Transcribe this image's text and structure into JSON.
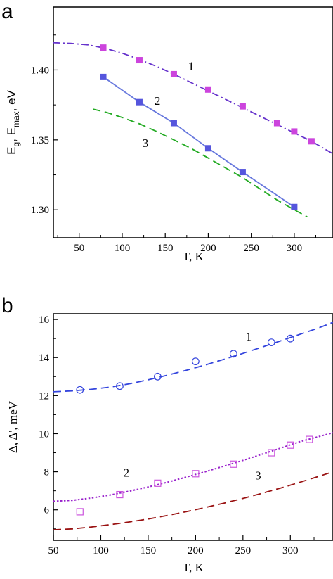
{
  "chart_data": [
    {
      "panel": "a",
      "type": "line",
      "xlabel": "T, K",
      "ylabel_parts": [
        "E",
        "g",
        ",  E",
        "max",
        ", eV"
      ],
      "xlim": [
        20,
        345
      ],
      "ylim": [
        1.28,
        1.445
      ],
      "x_ticks": [
        50,
        100,
        150,
        200,
        250,
        300
      ],
      "x_tick_labels": [
        "50",
        "100",
        "150",
        "200",
        "250",
        "300"
      ],
      "y_ticks": [
        1.3,
        1.35,
        1.4
      ],
      "y_tick_labels": [
        "1.30",
        "1.35",
        "1.40"
      ],
      "grid": false,
      "legend": "none",
      "series": [
        {
          "label": "1",
          "color": "#6633cc",
          "style": "dash-dot",
          "marker": "filled-square",
          "marker_color": "#cc44dd",
          "line": {
            "x": [
              20,
              40,
              60,
              80,
              100,
              120,
              140,
              160,
              180,
              200,
              220,
              240,
              260,
              280,
              300,
              320,
              345
            ],
            "y": [
              1.4195,
              1.419,
              1.418,
              1.4155,
              1.412,
              1.4075,
              1.4025,
              1.397,
              1.391,
              1.385,
              1.379,
              1.373,
              1.367,
              1.361,
              1.355,
              1.349,
              1.34
            ]
          },
          "points": {
            "x": [
              78,
              120,
              160,
              200,
              240,
              280,
              300,
              320
            ],
            "y": [
              1.416,
              1.407,
              1.397,
              1.386,
              1.374,
              1.362,
              1.356,
              1.349
            ]
          }
        },
        {
          "label": "2",
          "color": "#6677dd",
          "style": "solid",
          "marker": "filled-square",
          "marker_color": "#5555dd",
          "line": {
            "x": [
              78,
              120,
              160,
              200,
              240,
              300
            ],
            "y": [
              1.395,
              1.377,
              1.362,
              1.344,
              1.327,
              1.302
            ]
          },
          "points": {
            "x": [
              78,
              120,
              160,
              200,
              240,
              300
            ],
            "y": [
              1.395,
              1.377,
              1.362,
              1.344,
              1.327,
              1.302
            ]
          }
        },
        {
          "label": "3",
          "color": "#22aa22",
          "style": "dashed",
          "marker": "none",
          "line": {
            "x": [
              66,
              80,
              100,
              120,
              140,
              160,
              180,
              200,
              220,
              240,
              260,
              280,
              300,
              315
            ],
            "y": [
              1.372,
              1.37,
              1.366,
              1.3615,
              1.356,
              1.35,
              1.344,
              1.337,
              1.33,
              1.323,
              1.315,
              1.307,
              1.3,
              1.295
            ]
          }
        }
      ],
      "annotations": [
        {
          "text": "1",
          "x": 180,
          "y": 1.4
        },
        {
          "text": "2",
          "x": 141,
          "y": 1.375
        },
        {
          "text": "3",
          "x": 127,
          "y": 1.345
        }
      ]
    },
    {
      "panel": "b",
      "type": "scatter",
      "xlabel": "T, K",
      "ylabel": "Δ, Δ', meV",
      "xlim": [
        50,
        345
      ],
      "ylim": [
        4.4,
        16.3
      ],
      "x_ticks": [
        50,
        100,
        150,
        200,
        250,
        300
      ],
      "x_tick_labels": [
        "50",
        "100",
        "150",
        "200",
        "250",
        "300"
      ],
      "y_ticks": [
        6,
        8,
        10,
        12,
        14,
        16
      ],
      "y_tick_labels": [
        "6",
        "8",
        "10",
        "12",
        "14",
        "16"
      ],
      "grid": false,
      "legend": "none",
      "series": [
        {
          "label": "1",
          "color": "#3344dd",
          "style": "dashed",
          "marker": "open-circle",
          "marker_color": "#3344dd",
          "line": {
            "x": [
              50,
              70,
              90,
              110,
              130,
              150,
              170,
              190,
              210,
              230,
              250,
              270,
              290,
              310,
              330,
              345
            ],
            "y": [
              12.2,
              12.25,
              12.33,
              12.45,
              12.62,
              12.83,
              13.07,
              13.33,
              13.61,
              13.91,
              14.22,
              14.55,
              14.88,
              15.22,
              15.56,
              15.85
            ]
          },
          "points": {
            "x": [
              78,
              120,
              160,
              200,
              240,
              280,
              300
            ],
            "y": [
              12.3,
              12.5,
              13.0,
              13.8,
              14.2,
              14.8,
              15.0
            ]
          }
        },
        {
          "label": "2",
          "color": "#9922cc",
          "style": "dotted",
          "marker": "open-square",
          "marker_color": "#cc55dd",
          "line": {
            "x": [
              50,
              70,
              90,
              110,
              130,
              150,
              170,
              190,
              210,
              230,
              250,
              270,
              290,
              310,
              330,
              345
            ],
            "y": [
              6.45,
              6.5,
              6.62,
              6.78,
              6.98,
              7.2,
              7.45,
              7.72,
              8.0,
              8.3,
              8.6,
              8.92,
              9.25,
              9.58,
              9.85,
              10.05
            ]
          },
          "points": {
            "x": [
              78,
              120,
              160,
              200,
              240,
              280,
              300,
              320
            ],
            "y": [
              5.9,
              6.8,
              7.4,
              7.9,
              8.4,
              9.0,
              9.4,
              9.7
            ]
          }
        },
        {
          "label": "3",
          "color": "#991111",
          "style": "dashed",
          "marker": "none",
          "line": {
            "x": [
              50,
              70,
              90,
              110,
              130,
              150,
              170,
              190,
              210,
              230,
              250,
              270,
              290,
              310,
              330,
              345
            ],
            "y": [
              4.95,
              5.0,
              5.1,
              5.22,
              5.36,
              5.52,
              5.7,
              5.9,
              6.12,
              6.35,
              6.6,
              6.87,
              7.15,
              7.45,
              7.76,
              8.0
            ]
          }
        }
      ],
      "annotations": [
        {
          "text": "1",
          "x": 256,
          "y": 14.9
        },
        {
          "text": "2",
          "x": 127,
          "y": 7.75
        },
        {
          "text": "3",
          "x": 266,
          "y": 7.6
        }
      ]
    }
  ]
}
